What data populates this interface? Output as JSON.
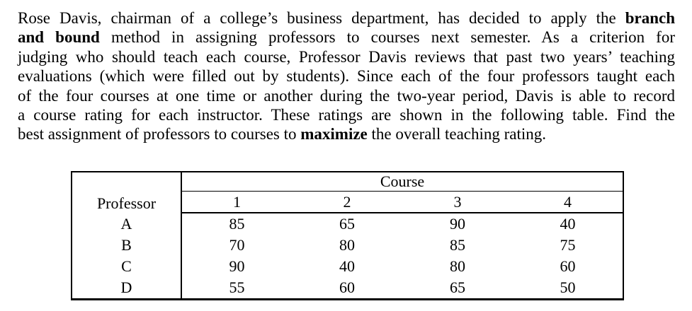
{
  "document": {
    "paragraph": {
      "lines": [
        {
          "segments": [
            {
              "text": "Rose Davis, chairman of a college’s business department, has decided to apply the ",
              "bold": false
            },
            {
              "text": "branch",
              "bold": true
            }
          ]
        },
        {
          "segments": [
            {
              "text": "and bound",
              "bold": true
            },
            {
              "text": " method in assigning professors to courses next semester. As a criterion for",
              "bold": false
            }
          ]
        },
        {
          "segments": [
            {
              "text": "judging who should teach each course, Professor Davis reviews that past two years’ teaching",
              "bold": false
            }
          ]
        },
        {
          "segments": [
            {
              "text": "evaluations (which were filled out by students). Since each of the four professors taught each",
              "bold": false
            }
          ]
        },
        {
          "segments": [
            {
              "text": "of the four courses at one time or another during the two-year period, Davis is able to record",
              "bold": false
            }
          ]
        },
        {
          "segments": [
            {
              "text": "a course rating for each instructor. These ratings are shown in the following table. Find the",
              "bold": false
            }
          ]
        },
        {
          "segments": [
            {
              "text": "best assignment of professors to courses to ",
              "bold": false
            },
            {
              "text": "maximize",
              "bold": true
            },
            {
              "text": " the overall teaching rating.",
              "bold": false
            }
          ]
        }
      ]
    },
    "table": {
      "course_header": "Course",
      "professor_header": "Professor",
      "course_columns": [
        "1",
        "2",
        "3",
        "4"
      ],
      "rows": [
        {
          "professor": "A",
          "ratings": [
            "85",
            "65",
            "90",
            "40"
          ]
        },
        {
          "professor": "B",
          "ratings": [
            "70",
            "80",
            "85",
            "75"
          ]
        },
        {
          "professor": "C",
          "ratings": [
            "90",
            "40",
            "80",
            "60"
          ]
        },
        {
          "professor": "D",
          "ratings": [
            "55",
            "60",
            "65",
            "50"
          ]
        }
      ]
    }
  }
}
